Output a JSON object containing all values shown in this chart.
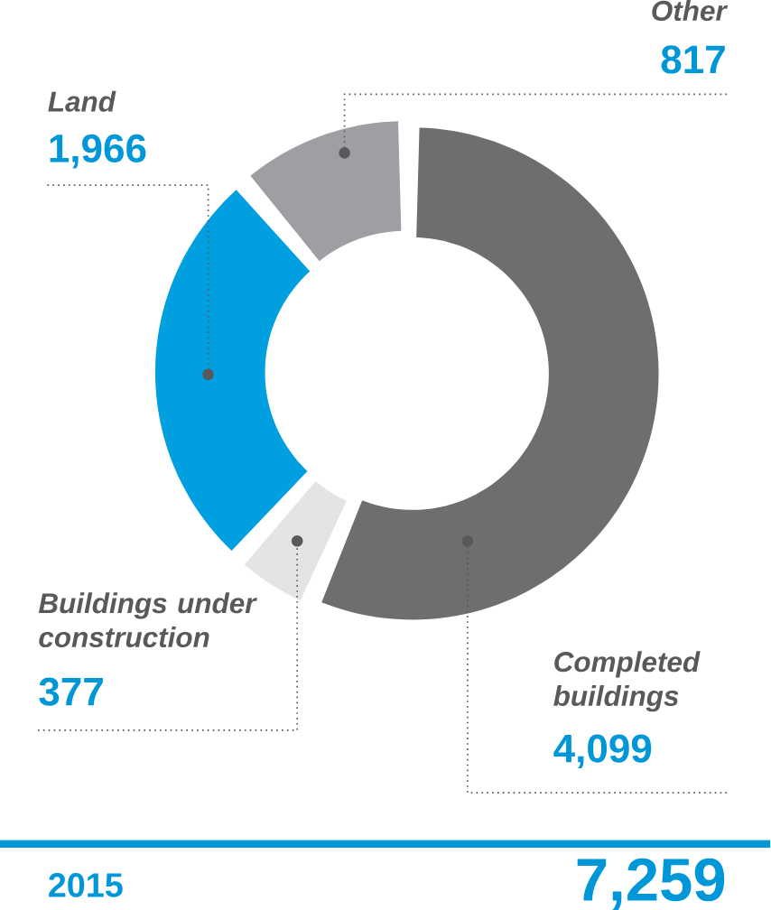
{
  "chart_data": {
    "type": "donut",
    "categories": [
      "Completed buildings",
      "Buildings under construction",
      "Land",
      "Other"
    ],
    "values": [
      4099,
      377,
      1966,
      817
    ],
    "colors": [
      "#6d6e70",
      "#e3e4e5",
      "#009fe0",
      "#9d9fa2"
    ],
    "value_labels": [
      "4,099",
      "377",
      "1,966",
      "817"
    ],
    "annotations": [
      "2015",
      "7,259"
    ]
  }
}
